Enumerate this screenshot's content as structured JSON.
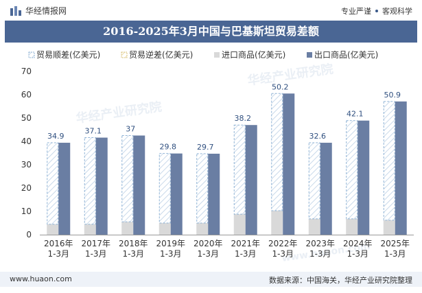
{
  "header": {
    "brand": "华经情报网",
    "tagline_left": "专业严谨",
    "tagline_right": "客观科学"
  },
  "title": "2016-2025年3月中国与巴基斯坦贸易差额",
  "footer": {
    "website": "www.huaon.com",
    "source": "数据来源：中国海关，华经产业研究院整理"
  },
  "watermarks": [
    "华经产业研究院",
    "www.huaon.com"
  ],
  "colors": {
    "export": "#6a7ea3",
    "import": "#d9d9d9",
    "surplus_stroke": "#8fb3d6",
    "label": "#2f4f7f",
    "title_bg": "#4a6694"
  },
  "chart_data": {
    "type": "bar",
    "categories": [
      "2016年\n1-3月",
      "2017年\n1-3月",
      "2018年\n1-3月",
      "2019年\n1-3月",
      "2020年\n1-3月",
      "2021年\n1-3月",
      "2022年\n1-3月",
      "2023年\n1-3月",
      "2024年\n1-3月",
      "2025年\n1-3月"
    ],
    "series": [
      {
        "name": "贸易顺差(亿美元)",
        "values": [
          34.9,
          37.1,
          37,
          29.8,
          29.7,
          38.2,
          50.2,
          32.6,
          42.1,
          50.9
        ]
      },
      {
        "name": "贸易逆差(亿美元)",
        "values": [
          0,
          0,
          0,
          0,
          0,
          0,
          0,
          0,
          0,
          0
        ]
      },
      {
        "name": "进口商品(亿美元)",
        "values": [
          4.5,
          4.5,
          5.5,
          5.0,
          5.0,
          8.8,
          10.3,
          6.8,
          6.8,
          6.2
        ]
      },
      {
        "name": "出口商品(亿美元)",
        "values": [
          39.4,
          41.6,
          42.5,
          34.8,
          34.7,
          47.0,
          60.5,
          39.4,
          48.9,
          57.1
        ]
      }
    ],
    "yticks": [
      0,
      10,
      20,
      30,
      40,
      50,
      60,
      70
    ],
    "ylim": [
      0,
      70
    ],
    "legend_position": "top"
  }
}
